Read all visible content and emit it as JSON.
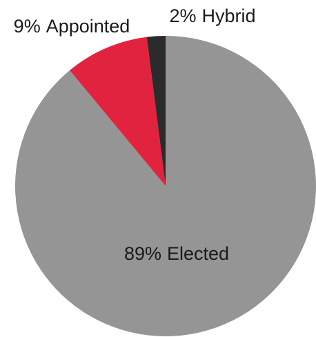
{
  "chart_data": {
    "type": "pie",
    "categories": [
      "Elected",
      "Appointed",
      "Hybrid"
    ],
    "values": [
      89,
      9,
      2
    ],
    "value_labels": [
      "89%",
      "9%",
      "2%"
    ],
    "colors": [
      "#959596",
      "#e2233f",
      "#2b2b2d"
    ]
  }
}
